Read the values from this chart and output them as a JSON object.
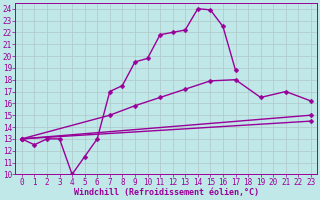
{
  "background_color": "#c0e8e8",
  "grid_color": "#b0c8c8",
  "line_color": "#990099",
  "markersize": 2.5,
  "linewidth": 1.0,
  "xlabel": "Windchill (Refroidissement éolien,°C)",
  "xlabel_fontsize": 6,
  "tick_fontsize": 5.5,
  "xlim": [
    -0.5,
    23.5
  ],
  "ylim": [
    10,
    24.5
  ],
  "yticks": [
    10,
    11,
    12,
    13,
    14,
    15,
    16,
    17,
    18,
    19,
    20,
    21,
    22,
    23,
    24
  ],
  "xticks": [
    0,
    1,
    2,
    3,
    4,
    5,
    6,
    7,
    8,
    9,
    10,
    11,
    12,
    13,
    14,
    15,
    16,
    17,
    18,
    19,
    20,
    21,
    22,
    23
  ],
  "lines_x": [
    [
      0,
      1,
      2,
      3,
      4,
      5,
      6,
      7,
      8,
      9,
      10,
      11,
      12,
      13,
      14,
      15,
      16,
      17
    ],
    [
      0,
      7,
      9,
      11,
      13,
      15,
      17,
      19,
      21,
      23
    ],
    [
      0,
      23
    ],
    [
      0,
      23
    ]
  ],
  "lines_y": [
    [
      13,
      12.5,
      13,
      13,
      10,
      11.5,
      13,
      17,
      17.5,
      19.5,
      19.8,
      21.8,
      22,
      22.2,
      24,
      23.9,
      22.5,
      18.8
    ],
    [
      13,
      15.0,
      15.8,
      16.5,
      17.2,
      17.9,
      18.0,
      16.5,
      17.0,
      16.2
    ],
    [
      13,
      15.0
    ],
    [
      13,
      14.5
    ]
  ]
}
